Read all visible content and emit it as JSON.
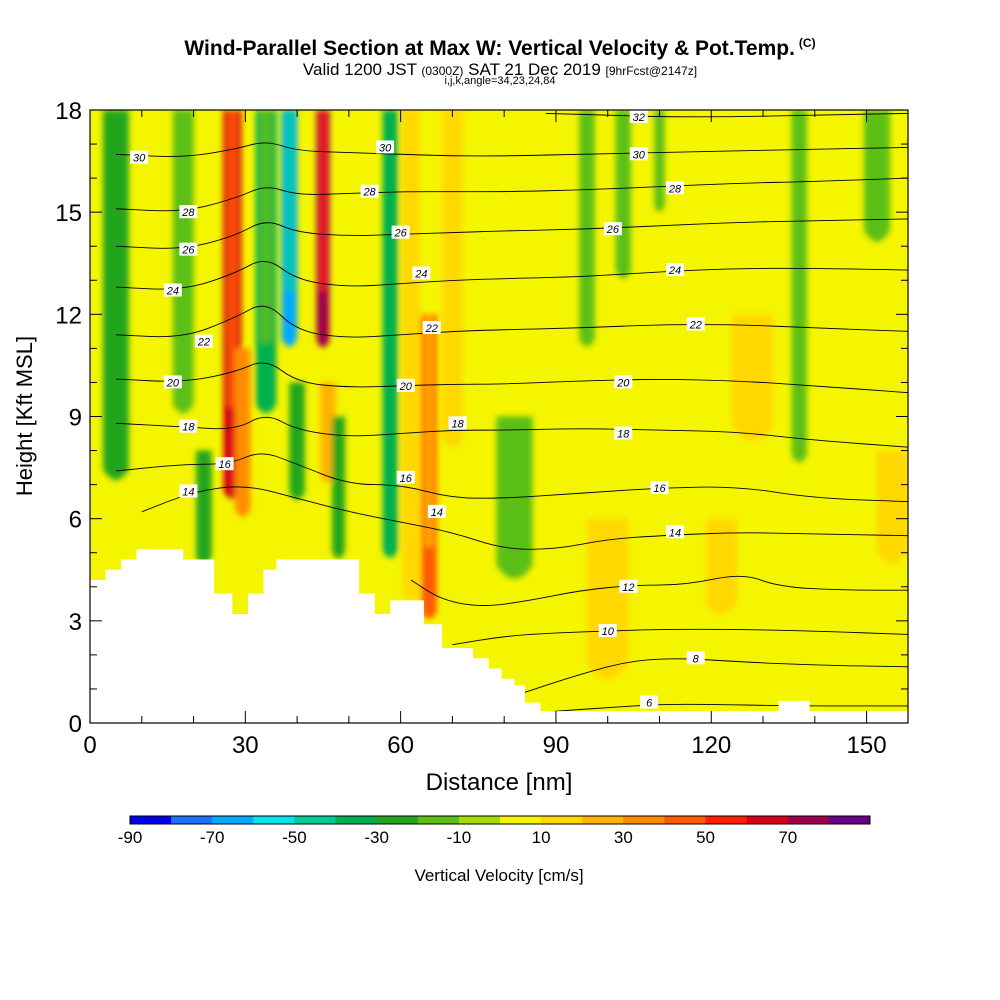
{
  "header": {
    "title": "Wind-Parallel Section at Max W: Vertical Velocity & Pot.Temp.",
    "title_unit": "(C)",
    "valid_prefix": "Valid 1200 JST",
    "valid_utc": "(0300Z)",
    "valid_date": "SAT 21 Dec 2019",
    "forecast_info": "[9hrFcst@2147z]",
    "indices": "i,j,k,angle=34,23,24,84"
  },
  "chart_data": {
    "type": "heatmap",
    "xlabel": "Distance [nm]",
    "ylabel": "Height [Kft MSL]",
    "xlim": [
      0,
      158
    ],
    "ylim": [
      0,
      18
    ],
    "x_ticks": [
      0,
      30,
      60,
      90,
      120,
      150
    ],
    "y_ticks": [
      0,
      3,
      6,
      9,
      12,
      15,
      18
    ],
    "colorbar": {
      "label": "Vertical Velocity [cm/s]",
      "tick_labels": [
        "-90",
        "-70",
        "-50",
        "-30",
        "-10",
        "10",
        "30",
        "50",
        "70"
      ],
      "tick_values": [
        -90,
        -70,
        -50,
        -30,
        -10,
        10,
        30,
        50,
        70
      ],
      "bounds": [
        -90,
        -80,
        -70,
        -60,
        -50,
        -40,
        -30,
        -20,
        -10,
        0,
        10,
        20,
        30,
        40,
        50,
        60,
        70,
        80
      ],
      "colors": [
        "#0000ee",
        "#1a73ff",
        "#00aaff",
        "#00e5ee",
        "#00cc99",
        "#00b050",
        "#23a51e",
        "#5cbf14",
        "#a6dc00",
        "#f5f500",
        "#ffd800",
        "#ffb200",
        "#ff8c00",
        "#ff5a00",
        "#ff1e00",
        "#d70014",
        "#a0004c",
        "#6a0088"
      ]
    },
    "velocity_features": [
      {
        "x": 5,
        "ytop": 18,
        "ybot": 7,
        "w": 5,
        "v": -28
      },
      {
        "x": 18,
        "ytop": 18,
        "ybot": 9,
        "w": 4,
        "v": -14
      },
      {
        "x": 22,
        "ytop": 8,
        "ybot": 4.6,
        "w": 3,
        "v": -30
      },
      {
        "x": 27.5,
        "ytop": 18,
        "ybot": 6.5,
        "w": 3.5,
        "v": 60
      },
      {
        "x": 29.5,
        "ytop": 11,
        "ybot": 6,
        "w": 3,
        "v": 30
      },
      {
        "x": 34,
        "ytop": 18,
        "ybot": 9,
        "w": 4,
        "v": -40
      },
      {
        "x": 38.5,
        "ytop": 18,
        "ybot": 11,
        "w": 3,
        "v": -65
      },
      {
        "x": 40,
        "ytop": 10,
        "ybot": 6.5,
        "w": 3,
        "v": -30
      },
      {
        "x": 45,
        "ytop": 18,
        "ybot": 11,
        "w": 2.5,
        "v": 75
      },
      {
        "x": 46,
        "ytop": 10,
        "ybot": 7,
        "w": 3,
        "v": 25
      },
      {
        "x": 48,
        "ytop": 9,
        "ybot": 4.8,
        "w": 2.5,
        "v": -30
      },
      {
        "x": 58,
        "ytop": 18,
        "ybot": 4.8,
        "w": 3,
        "v": -32
      },
      {
        "x": 62,
        "ytop": 18,
        "ybot": 3.5,
        "w": 3.5,
        "v": 16
      },
      {
        "x": 65.5,
        "ytop": 12,
        "ybot": 3,
        "w": 3,
        "v": 42
      },
      {
        "x": 70,
        "ytop": 18,
        "ybot": 8,
        "w": 4,
        "v": 14
      },
      {
        "x": 82,
        "ytop": 9,
        "ybot": 4,
        "w": 7,
        "v": -16
      },
      {
        "x": 96,
        "ytop": 18,
        "ybot": 11,
        "w": 3,
        "v": -15
      },
      {
        "x": 103,
        "ytop": 18,
        "ybot": 13,
        "w": 3,
        "v": -18
      },
      {
        "x": 110,
        "ytop": 18,
        "ybot": 15,
        "w": 2,
        "v": -14
      },
      {
        "x": 137,
        "ytop": 18,
        "ybot": 7.6,
        "w": 3,
        "v": -18
      },
      {
        "x": 152,
        "ytop": 18,
        "ybot": 14,
        "w": 5,
        "v": -14
      },
      {
        "x": 155,
        "ytop": 8,
        "ybot": 4.5,
        "w": 6,
        "v": 15
      },
      {
        "x": 100,
        "ytop": 6,
        "ybot": 1,
        "w": 8,
        "v": 12
      },
      {
        "x": 122,
        "ytop": 6,
        "ybot": 3,
        "w": 6,
        "v": 12
      },
      {
        "x": 128,
        "ytop": 12,
        "ybot": 8,
        "w": 8,
        "v": 12
      }
    ],
    "terrain": [
      [
        0,
        4.2
      ],
      [
        3,
        4.2
      ],
      [
        3,
        4.5
      ],
      [
        6,
        4.5
      ],
      [
        6,
        4.8
      ],
      [
        9,
        4.8
      ],
      [
        9,
        5.1
      ],
      [
        18,
        5.1
      ],
      [
        18,
        4.8
      ],
      [
        24,
        4.8
      ],
      [
        24,
        3.8
      ],
      [
        27.5,
        3.8
      ],
      [
        27.5,
        3.2
      ],
      [
        30.5,
        3.2
      ],
      [
        30.5,
        3.8
      ],
      [
        33.5,
        3.8
      ],
      [
        33.5,
        4.5
      ],
      [
        36,
        4.5
      ],
      [
        36,
        4.8
      ],
      [
        52,
        4.8
      ],
      [
        52,
        3.8
      ],
      [
        55,
        3.8
      ],
      [
        55,
        3.2
      ],
      [
        58,
        3.2
      ],
      [
        58,
        3.6
      ],
      [
        64.5,
        3.6
      ],
      [
        64.5,
        2.9
      ],
      [
        68,
        2.9
      ],
      [
        68,
        2.2
      ],
      [
        74,
        2.2
      ],
      [
        74,
        1.9
      ],
      [
        77,
        1.9
      ],
      [
        77,
        1.6
      ],
      [
        79.5,
        1.6
      ],
      [
        79.5,
        1.3
      ],
      [
        82,
        1.3
      ],
      [
        82,
        1.1
      ],
      [
        84,
        1.1
      ],
      [
        84,
        0.6
      ],
      [
        87,
        0.6
      ],
      [
        87,
        0.35
      ],
      [
        133,
        0.35
      ],
      [
        133,
        0.65
      ],
      [
        139,
        0.65
      ],
      [
        139,
        0.35
      ],
      [
        158,
        0.35
      ]
    ],
    "theta_contours": [
      {
        "value": 6,
        "label": "6",
        "pts": [
          [
            80,
            0.2
          ],
          [
            90,
            0.35
          ],
          [
            100,
            0.45
          ],
          [
            110,
            0.55
          ],
          [
            120,
            0.55
          ],
          [
            135,
            0.5
          ],
          [
            158,
            0.5
          ]
        ]
      },
      {
        "value": 8,
        "label": "8",
        "pts": [
          [
            84,
            0.9
          ],
          [
            95,
            1.45
          ],
          [
            105,
            1.85
          ],
          [
            115,
            1.9
          ],
          [
            125,
            1.8
          ],
          [
            140,
            1.7
          ],
          [
            158,
            1.65
          ]
        ]
      },
      {
        "value": 10,
        "label": "10",
        "pts": [
          [
            70,
            2.3
          ],
          [
            80,
            2.55
          ],
          [
            90,
            2.65
          ],
          [
            100,
            2.7
          ],
          [
            110,
            2.75
          ],
          [
            125,
            2.75
          ],
          [
            140,
            2.7
          ],
          [
            158,
            2.6
          ]
        ]
      },
      {
        "value": 12,
        "label": "12",
        "pts": [
          [
            62,
            4.2
          ],
          [
            68,
            3.6
          ],
          [
            76,
            3.4
          ],
          [
            85,
            3.6
          ],
          [
            95,
            3.9
          ],
          [
            105,
            4.05
          ],
          [
            115,
            4.05
          ],
          [
            126,
            4.4
          ],
          [
            133,
            4.0
          ],
          [
            145,
            3.9
          ],
          [
            158,
            3.9
          ]
        ]
      },
      {
        "value": 14,
        "label": "14",
        "pts": [
          [
            10,
            6.2
          ],
          [
            20,
            6.8
          ],
          [
            30,
            7.0
          ],
          [
            40,
            6.6
          ],
          [
            50,
            6.2
          ],
          [
            60,
            5.9
          ],
          [
            70,
            5.6
          ],
          [
            80,
            5.1
          ],
          [
            90,
            5.1
          ],
          [
            100,
            5.4
          ],
          [
            110,
            5.5
          ],
          [
            125,
            5.6
          ],
          [
            140,
            5.55
          ],
          [
            158,
            5.5
          ]
        ]
      },
      {
        "value": 16,
        "label": "16",
        "pts": [
          [
            5,
            7.4
          ],
          [
            18,
            7.6
          ],
          [
            27,
            7.6
          ],
          [
            33,
            8.0
          ],
          [
            40,
            7.6
          ],
          [
            50,
            7.0
          ],
          [
            60,
            7.0
          ],
          [
            70,
            6.6
          ],
          [
            80,
            6.6
          ],
          [
            90,
            6.7
          ],
          [
            100,
            6.8
          ],
          [
            110,
            6.9
          ],
          [
            125,
            6.95
          ],
          [
            140,
            6.6
          ],
          [
            158,
            6.5
          ]
        ]
      },
      {
        "value": 18,
        "label": "18",
        "pts": [
          [
            5,
            8.8
          ],
          [
            18,
            8.7
          ],
          [
            28,
            8.6
          ],
          [
            34,
            9.1
          ],
          [
            40,
            8.6
          ],
          [
            50,
            8.4
          ],
          [
            60,
            8.5
          ],
          [
            70,
            8.6
          ],
          [
            80,
            8.6
          ],
          [
            95,
            8.65
          ],
          [
            110,
            8.6
          ],
          [
            125,
            8.55
          ],
          [
            140,
            8.3
          ],
          [
            158,
            8.1
          ]
        ]
      },
      {
        "value": 20,
        "label": "20",
        "pts": [
          [
            5,
            10.1
          ],
          [
            18,
            10.0
          ],
          [
            28,
            10.3
          ],
          [
            34,
            10.7
          ],
          [
            40,
            10.0
          ],
          [
            50,
            9.85
          ],
          [
            60,
            9.9
          ],
          [
            70,
            9.95
          ],
          [
            80,
            9.95
          ],
          [
            95,
            10.05
          ],
          [
            110,
            10.1
          ],
          [
            125,
            10.05
          ],
          [
            140,
            9.9
          ],
          [
            158,
            9.7
          ]
        ]
      },
      {
        "value": 22,
        "label": "22",
        "pts": [
          [
            5,
            11.4
          ],
          [
            18,
            11.3
          ],
          [
            28,
            11.9
          ],
          [
            34,
            12.4
          ],
          [
            40,
            11.5
          ],
          [
            50,
            11.3
          ],
          [
            60,
            11.4
          ],
          [
            70,
            11.5
          ],
          [
            80,
            11.55
          ],
          [
            95,
            11.6
          ],
          [
            110,
            11.7
          ],
          [
            125,
            11.7
          ],
          [
            140,
            11.6
          ],
          [
            158,
            11.5
          ]
        ]
      },
      {
        "value": 24,
        "label": "24",
        "pts": [
          [
            5,
            12.8
          ],
          [
            18,
            12.7
          ],
          [
            28,
            13.2
          ],
          [
            34,
            13.7
          ],
          [
            40,
            13.0
          ],
          [
            50,
            12.8
          ],
          [
            60,
            12.9
          ],
          [
            70,
            13.0
          ],
          [
            80,
            13.05
          ],
          [
            95,
            13.1
          ],
          [
            110,
            13.25
          ],
          [
            125,
            13.35
          ],
          [
            140,
            13.35
          ],
          [
            158,
            13.3
          ]
        ]
      },
      {
        "value": 26,
        "label": "26",
        "pts": [
          [
            5,
            14.0
          ],
          [
            18,
            13.9
          ],
          [
            28,
            14.3
          ],
          [
            34,
            14.8
          ],
          [
            40,
            14.4
          ],
          [
            50,
            14.3
          ],
          [
            60,
            14.35
          ],
          [
            70,
            14.4
          ],
          [
            80,
            14.45
          ],
          [
            95,
            14.5
          ],
          [
            110,
            14.6
          ],
          [
            125,
            14.7
          ],
          [
            140,
            14.75
          ],
          [
            158,
            14.8
          ]
        ]
      },
      {
        "value": 28,
        "label": "28",
        "pts": [
          [
            5,
            15.1
          ],
          [
            18,
            15.0
          ],
          [
            28,
            15.4
          ],
          [
            34,
            15.8
          ],
          [
            40,
            15.5
          ],
          [
            50,
            15.55
          ],
          [
            60,
            15.6
          ],
          [
            70,
            15.6
          ],
          [
            80,
            15.6
          ],
          [
            95,
            15.65
          ],
          [
            110,
            15.75
          ],
          [
            125,
            15.85
          ],
          [
            140,
            15.9
          ],
          [
            158,
            16.0
          ]
        ]
      },
      {
        "value": 30,
        "label": "30",
        "pts": [
          [
            5,
            16.7
          ],
          [
            18,
            16.6
          ],
          [
            28,
            16.85
          ],
          [
            34,
            17.1
          ],
          [
            40,
            16.8
          ],
          [
            50,
            16.75
          ],
          [
            60,
            16.7
          ],
          [
            70,
            16.65
          ],
          [
            80,
            16.65
          ],
          [
            95,
            16.7
          ],
          [
            110,
            16.75
          ],
          [
            125,
            16.8
          ],
          [
            140,
            16.85
          ],
          [
            158,
            16.9
          ]
        ]
      },
      {
        "value": 32,
        "label": "32",
        "pts": [
          [
            88,
            17.9
          ],
          [
            100,
            17.85
          ],
          [
            110,
            17.8
          ],
          [
            125,
            17.8
          ],
          [
            140,
            17.85
          ],
          [
            158,
            17.9
          ]
        ]
      }
    ],
    "contour_labels": [
      {
        "label": "30",
        "x": 9.5,
        "y": 16.6
      },
      {
        "label": "28",
        "x": 19,
        "y": 15.0
      },
      {
        "label": "26",
        "x": 19,
        "y": 13.9
      },
      {
        "label": "24",
        "x": 16,
        "y": 12.7
      },
      {
        "label": "22",
        "x": 22,
        "y": 11.2
      },
      {
        "label": "20",
        "x": 16,
        "y": 10.0
      },
      {
        "label": "18",
        "x": 19,
        "y": 8.7
      },
      {
        "label": "16",
        "x": 26,
        "y": 7.6
      },
      {
        "label": "14",
        "x": 19,
        "y": 6.8
      },
      {
        "label": "30",
        "x": 57,
        "y": 16.9
      },
      {
        "label": "28",
        "x": 54,
        "y": 15.6
      },
      {
        "label": "26",
        "x": 60,
        "y": 14.4
      },
      {
        "label": "24",
        "x": 64,
        "y": 13.2
      },
      {
        "label": "22",
        "x": 66,
        "y": 11.6
      },
      {
        "label": "20",
        "x": 61,
        "y": 9.9
      },
      {
        "label": "18",
        "x": 71,
        "y": 8.8
      },
      {
        "label": "16",
        "x": 61,
        "y": 7.2
      },
      {
        "label": "14",
        "x": 67,
        "y": 6.2
      },
      {
        "label": "32",
        "x": 106,
        "y": 17.8
      },
      {
        "label": "30",
        "x": 106,
        "y": 16.7
      },
      {
        "label": "28",
        "x": 113,
        "y": 15.7
      },
      {
        "label": "26",
        "x": 101,
        "y": 14.5
      },
      {
        "label": "24",
        "x": 113,
        "y": 13.3
      },
      {
        "label": "22",
        "x": 117,
        "y": 11.7
      },
      {
        "label": "20",
        "x": 103,
        "y": 10.0
      },
      {
        "label": "18",
        "x": 103,
        "y": 8.5
      },
      {
        "label": "16",
        "x": 110,
        "y": 6.9
      },
      {
        "label": "14",
        "x": 113,
        "y": 5.6
      },
      {
        "label": "12",
        "x": 104,
        "y": 4.0
      },
      {
        "label": "10",
        "x": 100,
        "y": 2.7
      },
      {
        "label": "8",
        "x": 117,
        "y": 1.9
      },
      {
        "label": "6",
        "x": 108,
        "y": 0.6
      }
    ]
  }
}
